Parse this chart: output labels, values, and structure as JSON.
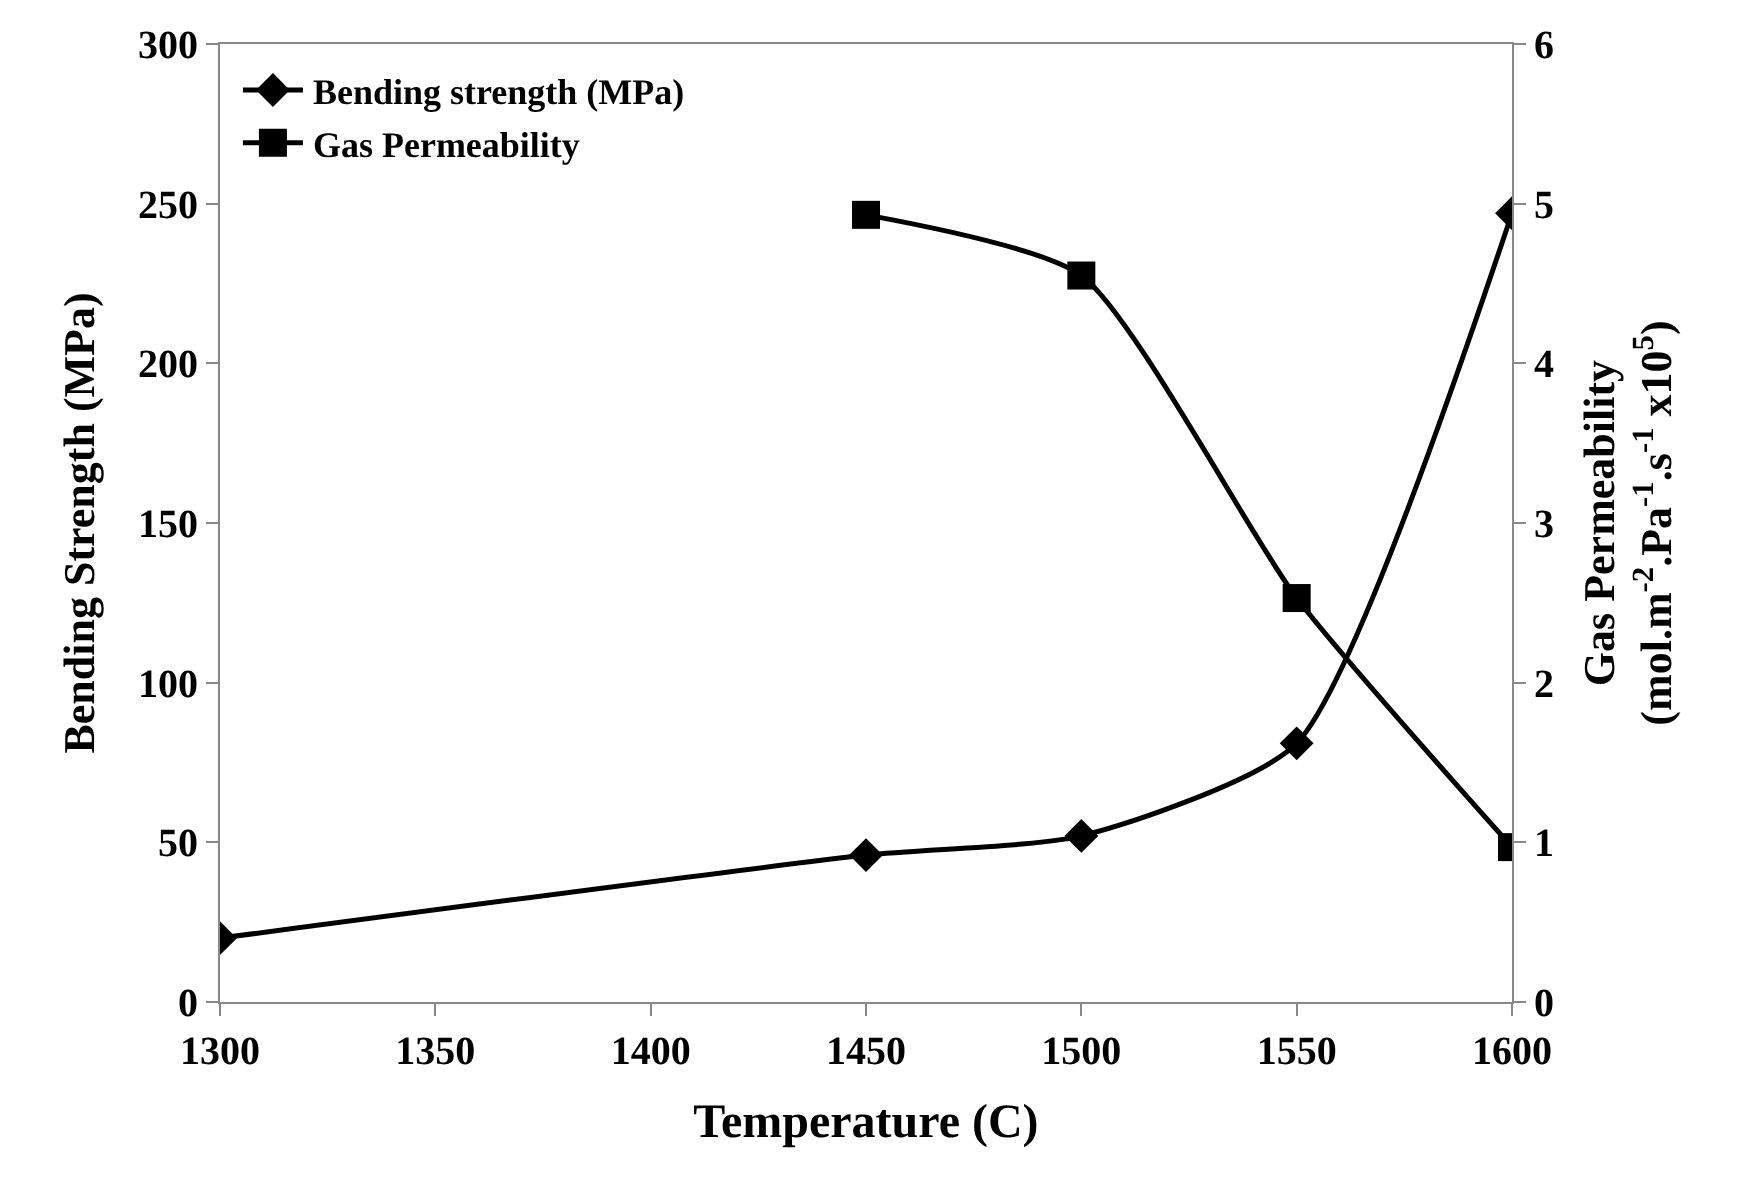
{
  "chart_data": {
    "type": "line",
    "xlabel": "Temperature (C)",
    "ylabel": "Bending Strength (MPa)",
    "y2label": "Gas Permeability\n(mol.m$^{-2}$.Pa$^{-1}$.s$^{-1}$ x10$^{5}$)",
    "x": [
      1300,
      1450,
      1500,
      1550,
      1600
    ],
    "series": [
      {
        "name": "Bending strength (MPa)",
        "color": "#000000",
        "marker": "diamond",
        "values": [
          20,
          46,
          52,
          81,
          247
        ]
      },
      {
        "name": "Gas Permeability",
        "color": "#000000",
        "marker": "square",
        "axis": "y2",
        "x": [
          1450,
          1500,
          1550,
          1600
        ],
        "values": [
          4.93,
          4.55,
          2.53,
          0.97
        ]
      }
    ],
    "xlim": [
      1300,
      1600
    ],
    "xticks": [
      1300,
      1350,
      1400,
      1450,
      1500,
      1550,
      1600
    ],
    "ylim": [
      0,
      300
    ],
    "yticks": [
      0,
      50,
      100,
      150,
      200,
      250,
      300
    ],
    "y2lim": [
      0,
      6
    ],
    "y2ticks": [
      0,
      1,
      2,
      3,
      4,
      5,
      6
    ],
    "legend": "top left",
    "line_style": "solid"
  }
}
